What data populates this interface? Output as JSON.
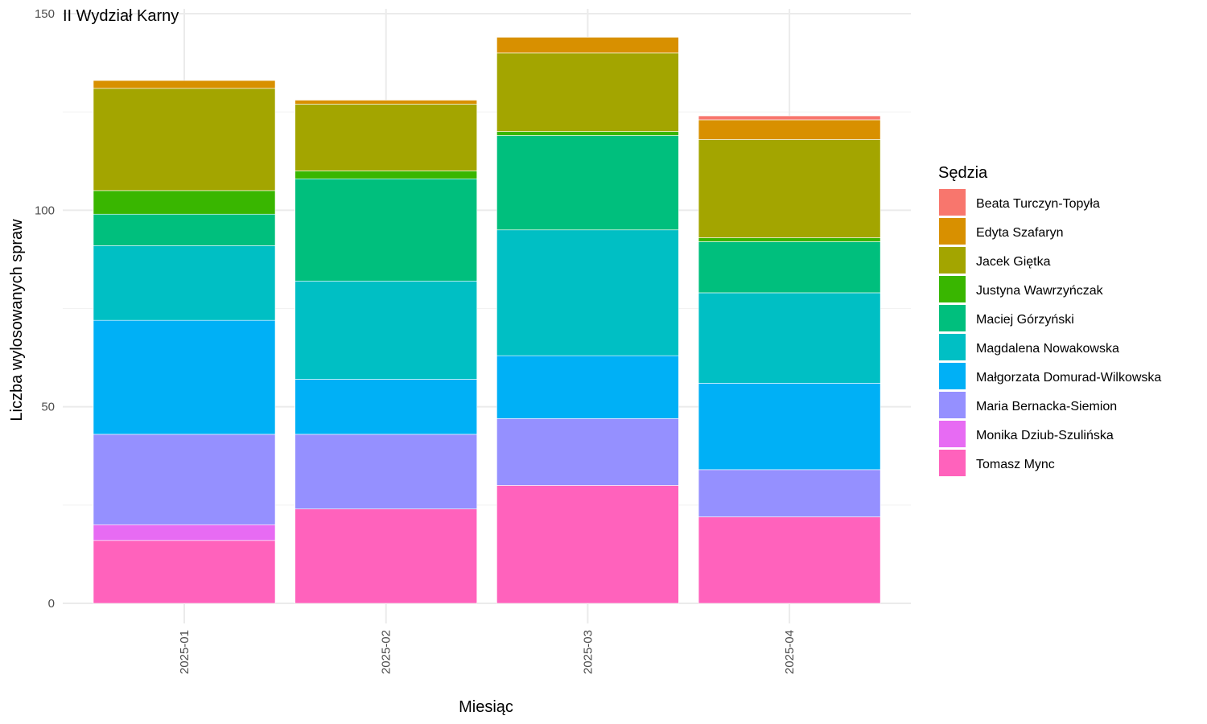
{
  "chart_data": {
    "type": "bar",
    "stacked": true,
    "title": "II Wydział Karny",
    "xlabel": "Miesiąc",
    "ylabel": "Liczba wylosowanych spraw",
    "ylim": [
      0,
      150
    ],
    "yticks": [
      0,
      50,
      100,
      150
    ],
    "grid": true,
    "legend_title": "Sędzia",
    "legend_position": "right",
    "categories": [
      "2025-01",
      "2025-02",
      "2025-03",
      "2025-04"
    ],
    "series": [
      {
        "name": "Beata Turczyn-Topyła",
        "color": "#F8766D",
        "values": [
          0,
          0,
          0,
          1
        ]
      },
      {
        "name": "Edyta Szafaryn",
        "color": "#D89000",
        "values": [
          2,
          1,
          4,
          5
        ]
      },
      {
        "name": "Jacek Giętka",
        "color": "#A3A500",
        "values": [
          26,
          17,
          20,
          25
        ]
      },
      {
        "name": "Justyna Wawrzyńczak",
        "color": "#39B600",
        "values": [
          6,
          2,
          1,
          1
        ]
      },
      {
        "name": "Maciej Górzyński",
        "color": "#00BF7D",
        "values": [
          8,
          26,
          24,
          13
        ]
      },
      {
        "name": "Magdalena Nowakowska",
        "color": "#00BFC4",
        "values": [
          19,
          25,
          32,
          23
        ]
      },
      {
        "name": "Małgorzata Domurad-Wilkowska",
        "color": "#00B0F6",
        "values": [
          29,
          14,
          16,
          22
        ]
      },
      {
        "name": "Maria Bernacka-Siemion",
        "color": "#9590FF",
        "values": [
          23,
          19,
          17,
          12
        ]
      },
      {
        "name": "Monika Dziub-Szulińska",
        "color": "#E76BF3",
        "values": [
          4,
          0,
          0,
          0
        ]
      },
      {
        "name": "Tomasz Mync",
        "color": "#FF62BC",
        "values": [
          16,
          24,
          30,
          22
        ]
      }
    ]
  }
}
